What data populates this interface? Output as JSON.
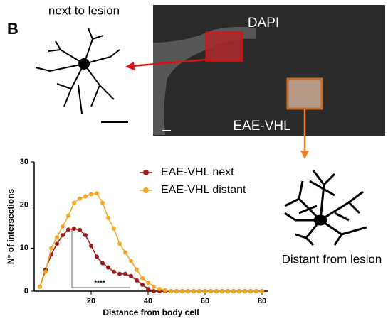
{
  "panel_label": "B",
  "image_labels": {
    "top_left": "next to lesion",
    "dapi": "DAPI",
    "eae": "EAE-VHL",
    "bottom_right": "Distant from lesion"
  },
  "chart_data": {
    "type": "line",
    "ylabel": "N° of intersections",
    "xlabel": "Distance from body cell",
    "annotation": "****",
    "x": [
      2,
      4,
      6,
      8,
      10,
      12,
      14,
      16,
      18,
      20,
      22,
      24,
      26,
      28,
      30,
      32,
      34,
      36,
      38,
      40,
      42,
      44,
      46,
      48,
      50,
      52,
      54,
      56,
      58,
      60,
      62,
      64,
      66,
      68,
      70,
      72,
      74,
      76,
      78,
      80
    ],
    "series": [
      {
        "name": "EAE-VHL next",
        "color": "#9b1b1b",
        "values": [
          1,
          5,
          8.5,
          11,
          13,
          14.3,
          14.5,
          14.2,
          13,
          10.5,
          8,
          6.5,
          5.5,
          4.5,
          4,
          4,
          3.5,
          2.5,
          1.5,
          0.5,
          0,
          0,
          0,
          0,
          0,
          0,
          0,
          0,
          0,
          0,
          0,
          0,
          0,
          0,
          0,
          0,
          0,
          0,
          0,
          0
        ]
      },
      {
        "name": "EAE-VHL distant",
        "color": "#f5a623",
        "values": [
          1,
          4.5,
          10,
          12.5,
          15,
          17.5,
          20.5,
          21.5,
          22,
          22.5,
          22.7,
          20.5,
          17,
          14.5,
          11,
          9,
          7,
          5,
          3,
          2,
          1,
          0.5,
          0.2,
          0,
          0,
          0,
          0,
          0,
          0,
          0,
          0,
          0,
          0,
          0,
          0,
          0,
          0,
          0,
          0,
          0
        ]
      }
    ],
    "xlim": [
      0,
      82
    ],
    "xticks": [
      20,
      40,
      60,
      80
    ],
    "ylim": [
      0,
      30
    ],
    "yticks": [
      0,
      10,
      20,
      30
    ]
  }
}
